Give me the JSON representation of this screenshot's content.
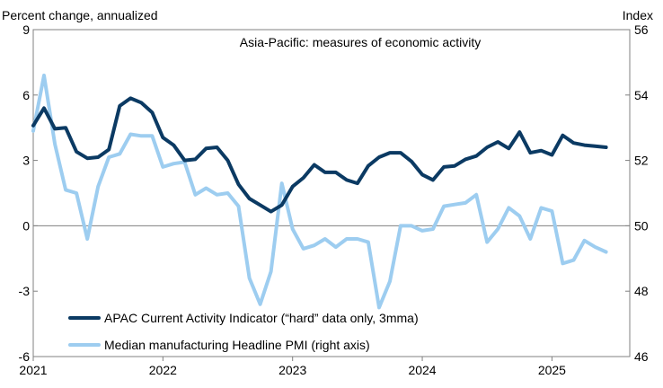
{
  "chart_data": {
    "type": "line",
    "title": "Asia-Pacific: measures of economic activity",
    "ylabel_left": "Percent change, annualized",
    "ylabel_right": "Index",
    "ylim_left": [
      -6,
      9
    ],
    "ylim_right": [
      46,
      56
    ],
    "yticks_left": [
      "-6",
      "-3",
      "0",
      "3",
      "6",
      "9"
    ],
    "yticks_right": [
      "46",
      "48",
      "50",
      "52",
      "54",
      "56"
    ],
    "xlim": [
      2021.0,
      2025.6
    ],
    "xticks": [
      "2021",
      "2022",
      "2023",
      "2024",
      "2025"
    ],
    "grid": false,
    "legend_position": "bottom-left",
    "series": [
      {
        "name": "APAC Current Activity Indicator (“hard” data only, 3mma)",
        "axis": "left",
        "color": "#0b3a63",
        "x": [
          2021.0,
          2021.083,
          2021.167,
          2021.25,
          2021.333,
          2021.417,
          2021.5,
          2021.583,
          2021.667,
          2021.75,
          2021.833,
          2021.917,
          2022.0,
          2022.083,
          2022.167,
          2022.25,
          2022.333,
          2022.417,
          2022.5,
          2022.583,
          2022.667,
          2022.75,
          2022.833,
          2022.917,
          2023.0,
          2023.083,
          2023.167,
          2023.25,
          2023.333,
          2023.417,
          2023.5,
          2023.583,
          2023.667,
          2023.75,
          2023.833,
          2023.917,
          2024.0,
          2024.083,
          2024.167,
          2024.25,
          2024.333,
          2024.417,
          2024.5,
          2024.583,
          2024.667,
          2024.75,
          2024.833,
          2024.917,
          2025.0,
          2025.083,
          2025.167,
          2025.25,
          2025.333,
          2025.417
        ],
        "values": [
          4.6,
          5.4,
          4.45,
          4.5,
          3.4,
          3.1,
          3.15,
          3.5,
          5.5,
          5.85,
          5.65,
          5.2,
          4.05,
          3.7,
          3.0,
          3.05,
          3.55,
          3.6,
          3.0,
          1.9,
          1.25,
          0.95,
          0.65,
          0.95,
          1.8,
          2.2,
          2.8,
          2.45,
          2.45,
          2.1,
          1.95,
          2.75,
          3.15,
          3.35,
          3.35,
          2.95,
          2.35,
          2.1,
          2.7,
          2.75,
          3.05,
          3.2,
          3.6,
          3.85,
          3.55,
          4.3,
          3.35,
          3.45,
          3.25,
          4.15,
          3.8,
          3.7,
          3.65,
          3.6
        ]
      },
      {
        "name": "Median manufacturing Headline PMI (right axis)",
        "axis": "right",
        "color": "#9dcdf0",
        "x": [
          2021.0,
          2021.083,
          2021.167,
          2021.25,
          2021.333,
          2021.417,
          2021.5,
          2021.583,
          2021.667,
          2021.75,
          2021.833,
          2021.917,
          2022.0,
          2022.083,
          2022.167,
          2022.25,
          2022.333,
          2022.417,
          2022.5,
          2022.583,
          2022.667,
          2022.75,
          2022.833,
          2022.917,
          2023.0,
          2023.083,
          2023.167,
          2023.25,
          2023.333,
          2023.417,
          2023.5,
          2023.583,
          2023.667,
          2023.75,
          2023.833,
          2023.917,
          2024.0,
          2024.083,
          2024.167,
          2024.25,
          2024.333,
          2024.417,
          2024.5,
          2024.583,
          2024.667,
          2024.75,
          2024.833,
          2024.917,
          2025.0,
          2025.083,
          2025.167,
          2025.25,
          2025.333,
          2025.417
        ],
        "values": [
          52.9,
          54.6,
          52.5,
          51.1,
          51.0,
          49.6,
          51.2,
          52.1,
          52.2,
          52.8,
          52.75,
          52.75,
          51.8,
          51.9,
          51.95,
          50.95,
          51.15,
          50.95,
          51.0,
          50.6,
          48.4,
          47.6,
          48.6,
          51.3,
          49.9,
          49.3,
          49.4,
          49.6,
          49.35,
          49.6,
          49.6,
          49.5,
          47.5,
          48.3,
          50.0,
          50.0,
          49.85,
          49.9,
          50.6,
          50.65,
          50.7,
          50.95,
          49.5,
          49.9,
          50.55,
          50.3,
          49.6,
          50.55,
          50.45,
          48.85,
          48.95,
          49.55,
          49.35,
          49.2
        ]
      }
    ]
  }
}
